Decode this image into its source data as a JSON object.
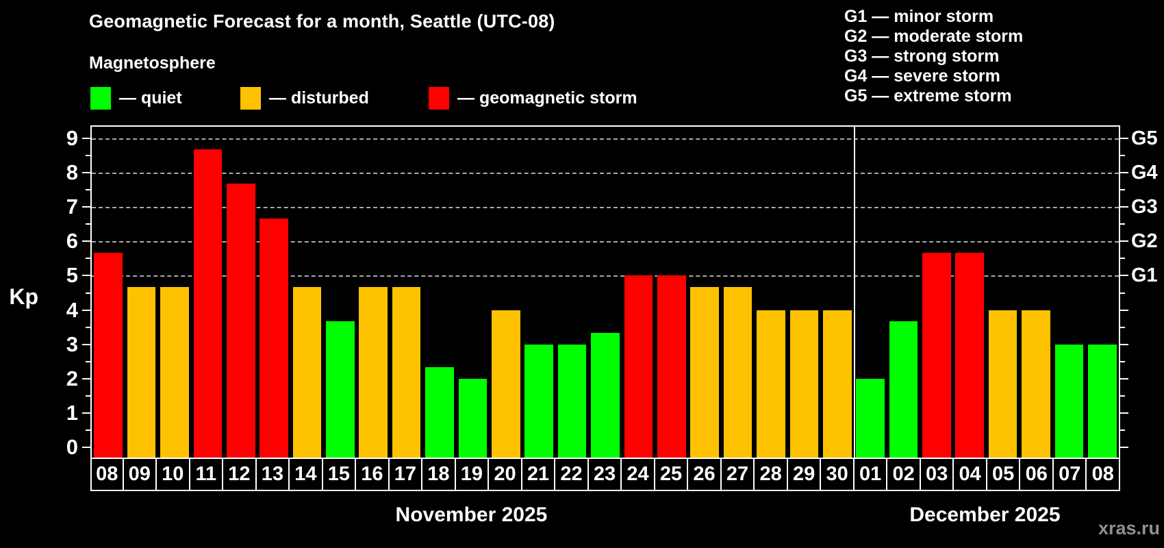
{
  "header": {
    "title": "Geomagnetic Forecast for a month, Seattle (UTC-08)",
    "subtitle": "Magnetosphere"
  },
  "legend": {
    "items": [
      {
        "key": "quiet",
        "label": "— quiet",
        "color": "#00ff00"
      },
      {
        "key": "disturbed",
        "label": "— disturbed",
        "color": "#ffc200"
      },
      {
        "key": "storm",
        "label": "— geomagnetic storm",
        "color": "#ff0000"
      }
    ]
  },
  "g_scale_legend": {
    "items": [
      "G1 — minor storm",
      "G2 — moderate storm",
      "G3 — strong storm",
      "G4 — severe storm",
      "G5 — extreme storm"
    ]
  },
  "watermark": "xras.ru",
  "chart_data": {
    "type": "bar",
    "ylabel": "Kp",
    "ylim": [
      0,
      9.33
    ],
    "baseline": -0.33,
    "y_ticks": [
      0,
      1,
      2,
      3,
      4,
      5,
      6,
      7,
      8,
      9
    ],
    "minor_ticks": [
      0.5,
      1.5,
      2.5,
      3.5,
      4.5,
      5.5,
      6.5,
      7.5,
      8.5
    ],
    "gridlines_kp": [
      5,
      6,
      7,
      8,
      9
    ],
    "right_axis_labels": [
      {
        "label": "G1",
        "kp": 5
      },
      {
        "label": "G2",
        "kp": 6
      },
      {
        "label": "G3",
        "kp": 7
      },
      {
        "label": "G4",
        "kp": 8
      },
      {
        "label": "G5",
        "kp": 9
      }
    ],
    "status_colors": {
      "quiet": "#00ff00",
      "disturbed": "#ffc200",
      "storm": "#ff0000"
    },
    "grid_color": "#aaaaaa",
    "groups": [
      {
        "month_label": "November 2025",
        "bars": [
          {
            "day": "08",
            "kp": 5.67,
            "status": "storm"
          },
          {
            "day": "09",
            "kp": 4.67,
            "status": "disturbed"
          },
          {
            "day": "10",
            "kp": 4.67,
            "status": "disturbed"
          },
          {
            "day": "11",
            "kp": 8.67,
            "status": "storm"
          },
          {
            "day": "12",
            "kp": 7.67,
            "status": "storm"
          },
          {
            "day": "13",
            "kp": 6.67,
            "status": "storm"
          },
          {
            "day": "14",
            "kp": 4.67,
            "status": "disturbed"
          },
          {
            "day": "15",
            "kp": 3.67,
            "status": "quiet"
          },
          {
            "day": "16",
            "kp": 4.67,
            "status": "disturbed"
          },
          {
            "day": "17",
            "kp": 4.67,
            "status": "disturbed"
          },
          {
            "day": "18",
            "kp": 2.33,
            "status": "quiet"
          },
          {
            "day": "19",
            "kp": 2.0,
            "status": "quiet"
          },
          {
            "day": "20",
            "kp": 4.0,
            "status": "disturbed"
          },
          {
            "day": "21",
            "kp": 3.0,
            "status": "quiet"
          },
          {
            "day": "22",
            "kp": 3.0,
            "status": "quiet"
          },
          {
            "day": "23",
            "kp": 3.33,
            "status": "quiet"
          },
          {
            "day": "24",
            "kp": 5.0,
            "status": "storm"
          },
          {
            "day": "25",
            "kp": 5.0,
            "status": "storm"
          },
          {
            "day": "26",
            "kp": 4.67,
            "status": "disturbed"
          },
          {
            "day": "27",
            "kp": 4.67,
            "status": "disturbed"
          },
          {
            "day": "28",
            "kp": 4.0,
            "status": "disturbed"
          },
          {
            "day": "29",
            "kp": 4.0,
            "status": "disturbed"
          },
          {
            "day": "30",
            "kp": 4.0,
            "status": "disturbed"
          }
        ]
      },
      {
        "month_label": "December 2025",
        "bars": [
          {
            "day": "01",
            "kp": 2.0,
            "status": "quiet"
          },
          {
            "day": "02",
            "kp": 3.67,
            "status": "quiet"
          },
          {
            "day": "03",
            "kp": 5.67,
            "status": "storm"
          },
          {
            "day": "04",
            "kp": 5.67,
            "status": "storm"
          },
          {
            "day": "05",
            "kp": 4.0,
            "status": "disturbed"
          },
          {
            "day": "06",
            "kp": 4.0,
            "status": "disturbed"
          },
          {
            "day": "07",
            "kp": 3.0,
            "status": "quiet"
          },
          {
            "day": "08",
            "kp": 3.0,
            "status": "quiet"
          }
        ]
      }
    ]
  }
}
